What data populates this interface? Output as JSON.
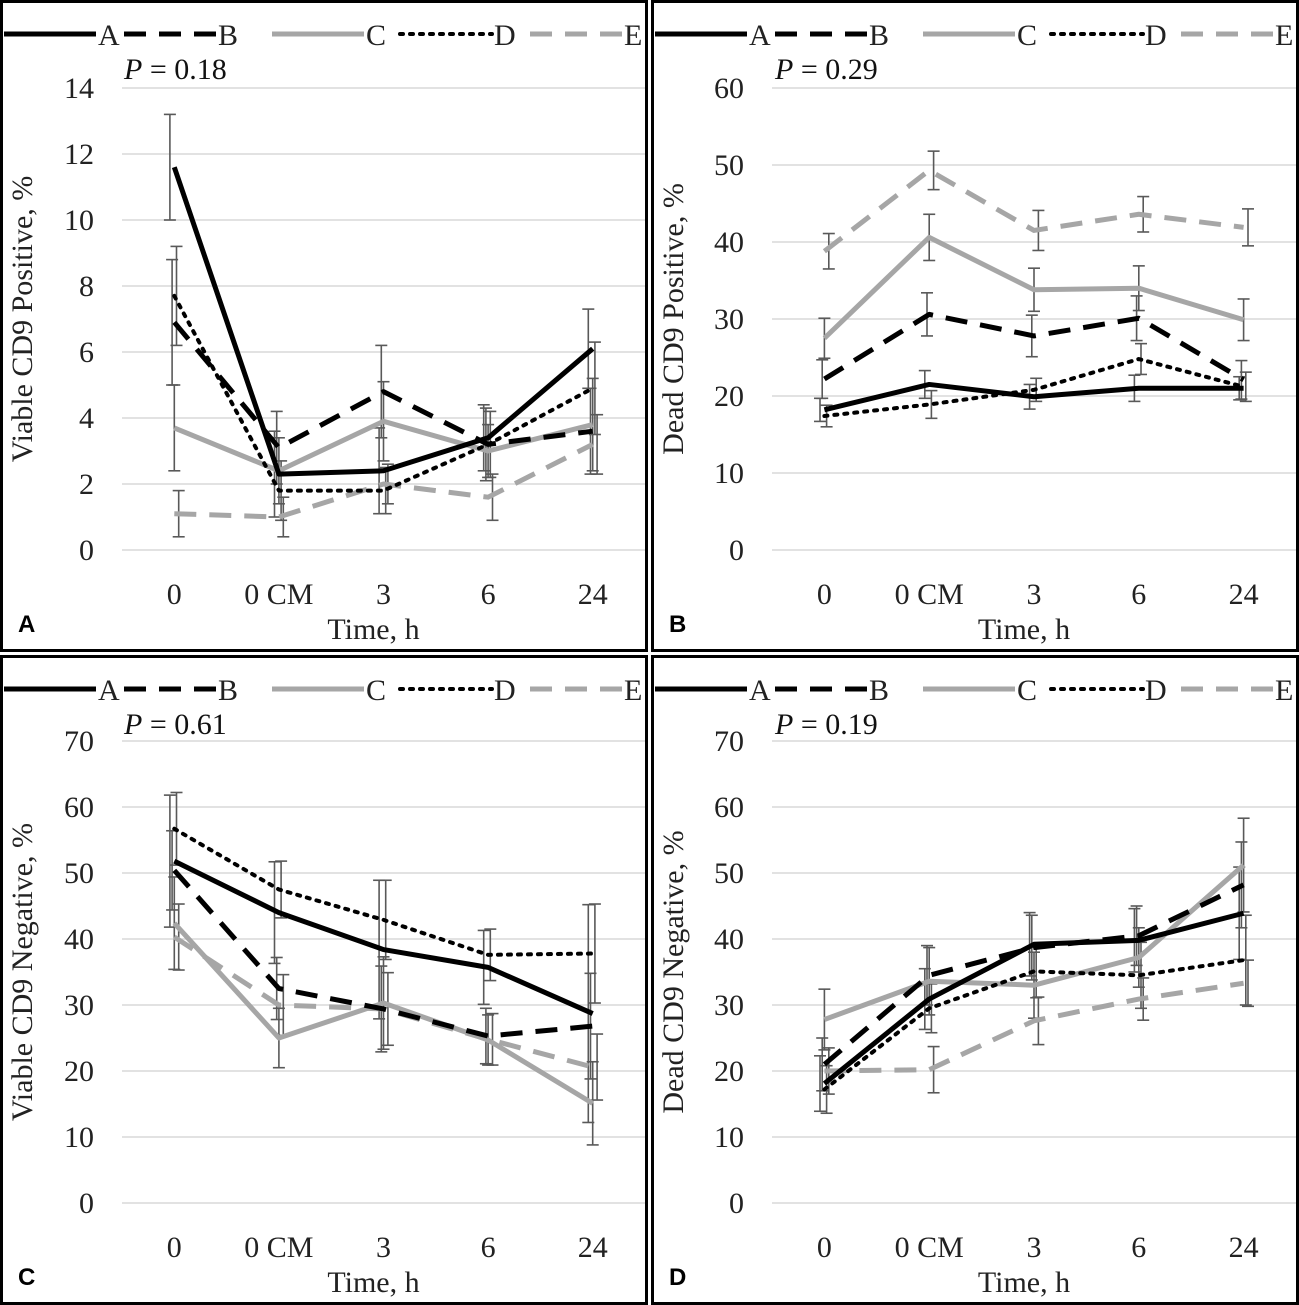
{
  "figure": {
    "legend_names": [
      "A",
      "B",
      "C",
      "D",
      "E"
    ],
    "series_style": {
      "A": {
        "color": "#000000",
        "dash": "solid"
      },
      "B": {
        "color": "#000000",
        "dash": "dashed"
      },
      "C": {
        "color": "#a6a6a6",
        "dash": "solid"
      },
      "D": {
        "color": "#000000",
        "dash": "dotted"
      },
      "E": {
        "color": "#a6a6a6",
        "dashed": true,
        "dash": "dashed"
      }
    },
    "gridline_color": "#d9d9d9",
    "errorbar_color": "#595959"
  },
  "chart_data": [
    {
      "panel": "A",
      "type": "line",
      "pvalue": "P = 0.18",
      "title": "",
      "xlabel": "Time, h",
      "ylabel": "Viable CD9 Positive, %",
      "categories": [
        "0",
        "0 CM",
        "3",
        "6",
        "24"
      ],
      "ylim": [
        0,
        14
      ],
      "yticks": [
        0,
        2,
        4,
        6,
        8,
        10,
        12,
        14
      ],
      "grid": true,
      "legend": "top",
      "series": [
        {
          "name": "A",
          "values": [
            11.6,
            2.3,
            2.4,
            3.4,
            6.1
          ],
          "err": [
            1.6,
            1.3,
            1.3,
            1.0,
            1.2
          ]
        },
        {
          "name": "B",
          "values": [
            6.9,
            3.1,
            4.8,
            3.2,
            3.6
          ],
          "err": [
            1.9,
            1.1,
            1.4,
            1.1,
            1.3
          ]
        },
        {
          "name": "C",
          "values": [
            3.7,
            2.4,
            3.9,
            3.0,
            3.8
          ],
          "err": [
            1.3,
            1.0,
            1.2,
            0.8,
            1.4
          ]
        },
        {
          "name": "D",
          "values": [
            7.7,
            1.8,
            1.8,
            3.2,
            4.9
          ],
          "err": [
            1.5,
            0.9,
            0.7,
            1.0,
            1.4
          ]
        },
        {
          "name": "E",
          "values": [
            1.1,
            1.0,
            2.0,
            1.6,
            3.2
          ],
          "err": [
            0.7,
            0.6,
            0.6,
            0.7,
            0.9
          ]
        }
      ]
    },
    {
      "panel": "B",
      "type": "line",
      "pvalue": "P = 0.29",
      "title": "",
      "xlabel": "Time, h",
      "ylabel": "Dead CD9 Positive, %",
      "categories": [
        "0",
        "0 CM",
        "3",
        "6",
        "24"
      ],
      "ylim": [
        0,
        60
      ],
      "yticks": [
        0,
        10,
        20,
        30,
        40,
        50,
        60
      ],
      "grid": true,
      "legend": "top",
      "series": [
        {
          "name": "A",
          "values": [
            18.2,
            21.5,
            19.9,
            21.0,
            21.0
          ],
          "err": [
            1.5,
            1.8,
            1.6,
            1.7,
            1.5
          ]
        },
        {
          "name": "B",
          "values": [
            22.2,
            30.6,
            27.8,
            30.1,
            22.1
          ],
          "err": [
            2.5,
            2.8,
            2.7,
            2.9,
            2.5
          ]
        },
        {
          "name": "C",
          "values": [
            27.5,
            40.6,
            33.8,
            34.0,
            29.9
          ],
          "err": [
            2.6,
            3.0,
            2.8,
            2.9,
            2.7
          ]
        },
        {
          "name": "D",
          "values": [
            17.4,
            18.9,
            20.8,
            24.8,
            21.2
          ],
          "err": [
            1.4,
            1.8,
            1.5,
            2.0,
            1.9
          ]
        },
        {
          "name": "E",
          "values": [
            38.8,
            49.3,
            41.5,
            43.6,
            41.9
          ],
          "err": [
            2.3,
            2.5,
            2.6,
            2.3,
            2.4
          ]
        }
      ]
    },
    {
      "panel": "C",
      "type": "line",
      "pvalue": "P = 0.61",
      "title": "",
      "xlabel": "Time, h",
      "ylabel": "Viable CD9 Negative, %",
      "categories": [
        "0",
        "0 CM",
        "3",
        "6",
        "24"
      ],
      "ylim": [
        0,
        70
      ],
      "yticks": [
        0,
        10,
        20,
        30,
        40,
        50,
        60,
        70
      ],
      "grid": true,
      "legend": "top",
      "series": [
        {
          "name": "A",
          "values": [
            51.8,
            44.0,
            38.4,
            35.7,
            28.7
          ],
          "err": [
            10.0,
            7.7,
            10.5,
            5.6,
            16.5
          ]
        },
        {
          "name": "B",
          "values": [
            50.4,
            32.5,
            29.4,
            25.3,
            26.8
          ],
          "err": [
            6.0,
            4.7,
            6.5,
            4.2,
            8.0
          ]
        },
        {
          "name": "C",
          "values": [
            42.4,
            25.0,
            30.3,
            24.7,
            15.1
          ],
          "err": [
            7.0,
            4.5,
            7.0,
            3.8,
            6.3
          ]
        },
        {
          "name": "D",
          "values": [
            56.7,
            47.5,
            42.9,
            37.6,
            37.8
          ],
          "err": [
            5.5,
            4.3,
            6.0,
            3.9,
            7.5
          ]
        },
        {
          "name": "E",
          "values": [
            40.3,
            30.0,
            29.4,
            24.8,
            20.6
          ],
          "err": [
            5.0,
            4.6,
            5.5,
            3.9,
            5.0
          ]
        }
      ]
    },
    {
      "panel": "D",
      "type": "line",
      "pvalue": "P = 0.19",
      "title": "",
      "xlabel": "Time, h",
      "ylabel": "Dead CD9 Negative, %",
      "categories": [
        "0",
        "0 CM",
        "3",
        "6",
        "24"
      ],
      "ylim": [
        0,
        70
      ],
      "yticks": [
        0,
        10,
        20,
        30,
        40,
        50,
        60,
        70
      ],
      "grid": true,
      "legend": "top",
      "series": [
        {
          "name": "A",
          "values": [
            18.1,
            30.9,
            39.2,
            39.8,
            43.9
          ],
          "err": [
            4.2,
            4.6,
            4.8,
            4.8,
            7.0
          ]
        },
        {
          "name": "B",
          "values": [
            21.0,
            34.5,
            38.7,
            40.5,
            48.2
          ],
          "err": [
            4.0,
            4.5,
            4.9,
            4.5,
            6.5
          ]
        },
        {
          "name": "C",
          "values": [
            27.8,
            33.6,
            33.0,
            37.2,
            51.2
          ],
          "err": [
            4.6,
            5.1,
            5.0,
            4.5,
            7.1
          ]
        },
        {
          "name": "D",
          "values": [
            17.2,
            29.5,
            35.1,
            34.5,
            36.8
          ],
          "err": [
            3.6,
            3.7,
            4.0,
            5.0,
            6.8
          ]
        },
        {
          "name": "E",
          "values": [
            20.0,
            20.2,
            27.6,
            30.9,
            33.3
          ],
          "err": [
            3.5,
            3.5,
            3.6,
            3.2,
            3.5
          ]
        }
      ]
    }
  ]
}
